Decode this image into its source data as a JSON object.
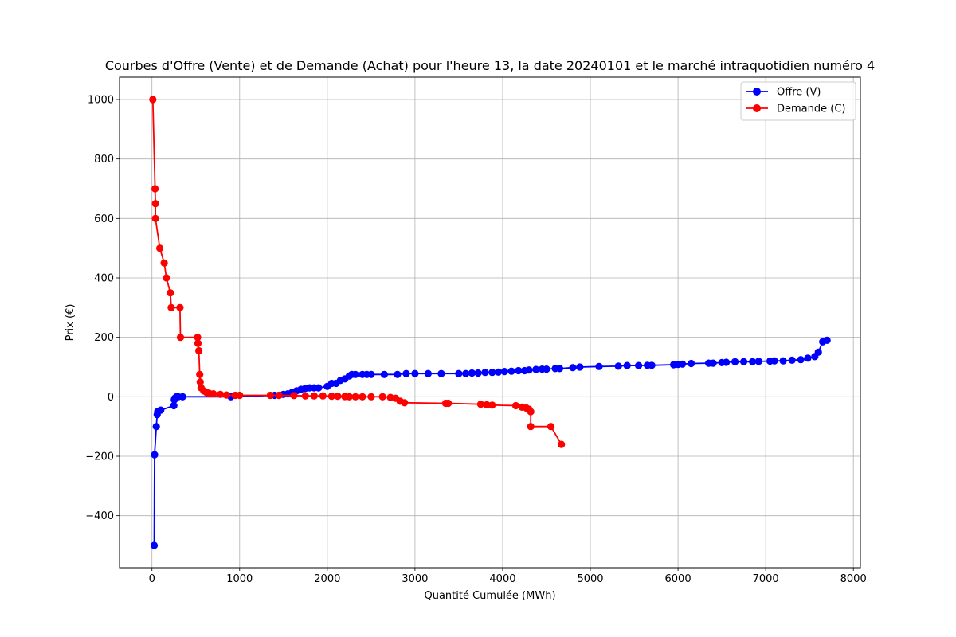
{
  "chart_data": {
    "type": "line",
    "title": "Courbes d'Offre (Vente) et de Demande (Achat) pour l'heure 13, la date 20240101 et le marché intraquotidien numéro 4",
    "xlabel": "Quantité Cumulée (MWh)",
    "ylabel": "Prix (€)",
    "xlim": [
      -370,
      8080
    ],
    "ylim": [
      -575,
      1075
    ],
    "xticks": [
      0,
      1000,
      2000,
      3000,
      4000,
      5000,
      6000,
      7000,
      8000
    ],
    "yticks": [
      -400,
      -200,
      0,
      200,
      400,
      600,
      800,
      1000
    ],
    "grid": true,
    "legend_position": "top-right",
    "marker": "circle",
    "series": [
      {
        "name": "Offre (V)",
        "color": "#0000ff",
        "points": [
          [
            25,
            -500
          ],
          [
            30,
            -195
          ],
          [
            50,
            -100
          ],
          [
            60,
            -60
          ],
          [
            65,
            -50
          ],
          [
            100,
            -45
          ],
          [
            250,
            -30
          ],
          [
            255,
            -10
          ],
          [
            260,
            -5
          ],
          [
            280,
            0
          ],
          [
            300,
            0
          ],
          [
            350,
            0
          ],
          [
            900,
            0
          ],
          [
            1400,
            5
          ],
          [
            1450,
            5
          ],
          [
            1500,
            8
          ],
          [
            1550,
            10
          ],
          [
            1600,
            15
          ],
          [
            1650,
            20
          ],
          [
            1700,
            25
          ],
          [
            1750,
            28
          ],
          [
            1800,
            30
          ],
          [
            1850,
            30
          ],
          [
            1900,
            30
          ],
          [
            2000,
            35
          ],
          [
            2050,
            45
          ],
          [
            2100,
            45
          ],
          [
            2150,
            55
          ],
          [
            2200,
            60
          ],
          [
            2250,
            70
          ],
          [
            2280,
            75
          ],
          [
            2320,
            75
          ],
          [
            2400,
            75
          ],
          [
            2450,
            75
          ],
          [
            2500,
            75
          ],
          [
            2650,
            75
          ],
          [
            2800,
            75
          ],
          [
            2900,
            78
          ],
          [
            3000,
            78
          ],
          [
            3150,
            78
          ],
          [
            3300,
            78
          ],
          [
            3500,
            78
          ],
          [
            3580,
            78
          ],
          [
            3650,
            80
          ],
          [
            3720,
            80
          ],
          [
            3800,
            82
          ],
          [
            3880,
            82
          ],
          [
            3950,
            83
          ],
          [
            4020,
            85
          ],
          [
            4100,
            86
          ],
          [
            4180,
            88
          ],
          [
            4250,
            88
          ],
          [
            4300,
            90
          ],
          [
            4380,
            92
          ],
          [
            4450,
            93
          ],
          [
            4500,
            93
          ],
          [
            4600,
            95
          ],
          [
            4650,
            95
          ],
          [
            4800,
            98
          ],
          [
            4880,
            100
          ],
          [
            5100,
            102
          ],
          [
            5320,
            103
          ],
          [
            5420,
            105
          ],
          [
            5550,
            105
          ],
          [
            5650,
            106
          ],
          [
            5700,
            106
          ],
          [
            5950,
            108
          ],
          [
            6000,
            109
          ],
          [
            6050,
            110
          ],
          [
            6150,
            112
          ],
          [
            6350,
            113
          ],
          [
            6400,
            113
          ],
          [
            6500,
            115
          ],
          [
            6550,
            116
          ],
          [
            6650,
            118
          ],
          [
            6750,
            118
          ],
          [
            6850,
            118
          ],
          [
            6920,
            119
          ],
          [
            7050,
            120
          ],
          [
            7100,
            121
          ],
          [
            7200,
            121
          ],
          [
            7300,
            123
          ],
          [
            7400,
            125
          ],
          [
            7480,
            130
          ],
          [
            7560,
            135
          ],
          [
            7600,
            150
          ],
          [
            7650,
            185
          ],
          [
            7700,
            190
          ]
        ]
      },
      {
        "name": "Demande (C)",
        "color": "#ff0000",
        "points": [
          [
            10,
            1000
          ],
          [
            35,
            700
          ],
          [
            40,
            650
          ],
          [
            40,
            600
          ],
          [
            90,
            500
          ],
          [
            140,
            450
          ],
          [
            165,
            400
          ],
          [
            210,
            350
          ],
          [
            220,
            300
          ],
          [
            320,
            300
          ],
          [
            325,
            200
          ],
          [
            520,
            200
          ],
          [
            525,
            180
          ],
          [
            535,
            155
          ],
          [
            545,
            75
          ],
          [
            550,
            50
          ],
          [
            560,
            30
          ],
          [
            590,
            20
          ],
          [
            620,
            15
          ],
          [
            650,
            12
          ],
          [
            700,
            10
          ],
          [
            780,
            8
          ],
          [
            850,
            6
          ],
          [
            950,
            5
          ],
          [
            1000,
            5
          ],
          [
            1350,
            5
          ],
          [
            1450,
            5
          ],
          [
            1620,
            4
          ],
          [
            1750,
            3
          ],
          [
            1850,
            3
          ],
          [
            1950,
            3
          ],
          [
            2050,
            2
          ],
          [
            2120,
            2
          ],
          [
            2200,
            1
          ],
          [
            2250,
            0
          ],
          [
            2320,
            0
          ],
          [
            2400,
            0
          ],
          [
            2500,
            0
          ],
          [
            2630,
            0
          ],
          [
            2720,
            -2
          ],
          [
            2780,
            -5
          ],
          [
            2830,
            -15
          ],
          [
            2880,
            -20
          ],
          [
            3350,
            -22
          ],
          [
            3380,
            -22
          ],
          [
            3750,
            -25
          ],
          [
            3820,
            -27
          ],
          [
            3880,
            -28
          ],
          [
            4150,
            -30
          ],
          [
            4220,
            -35
          ],
          [
            4270,
            -38
          ],
          [
            4300,
            -42
          ],
          [
            4320,
            -50
          ],
          [
            4320,
            -100
          ],
          [
            4550,
            -100
          ],
          [
            4670,
            -160
          ]
        ]
      }
    ]
  }
}
